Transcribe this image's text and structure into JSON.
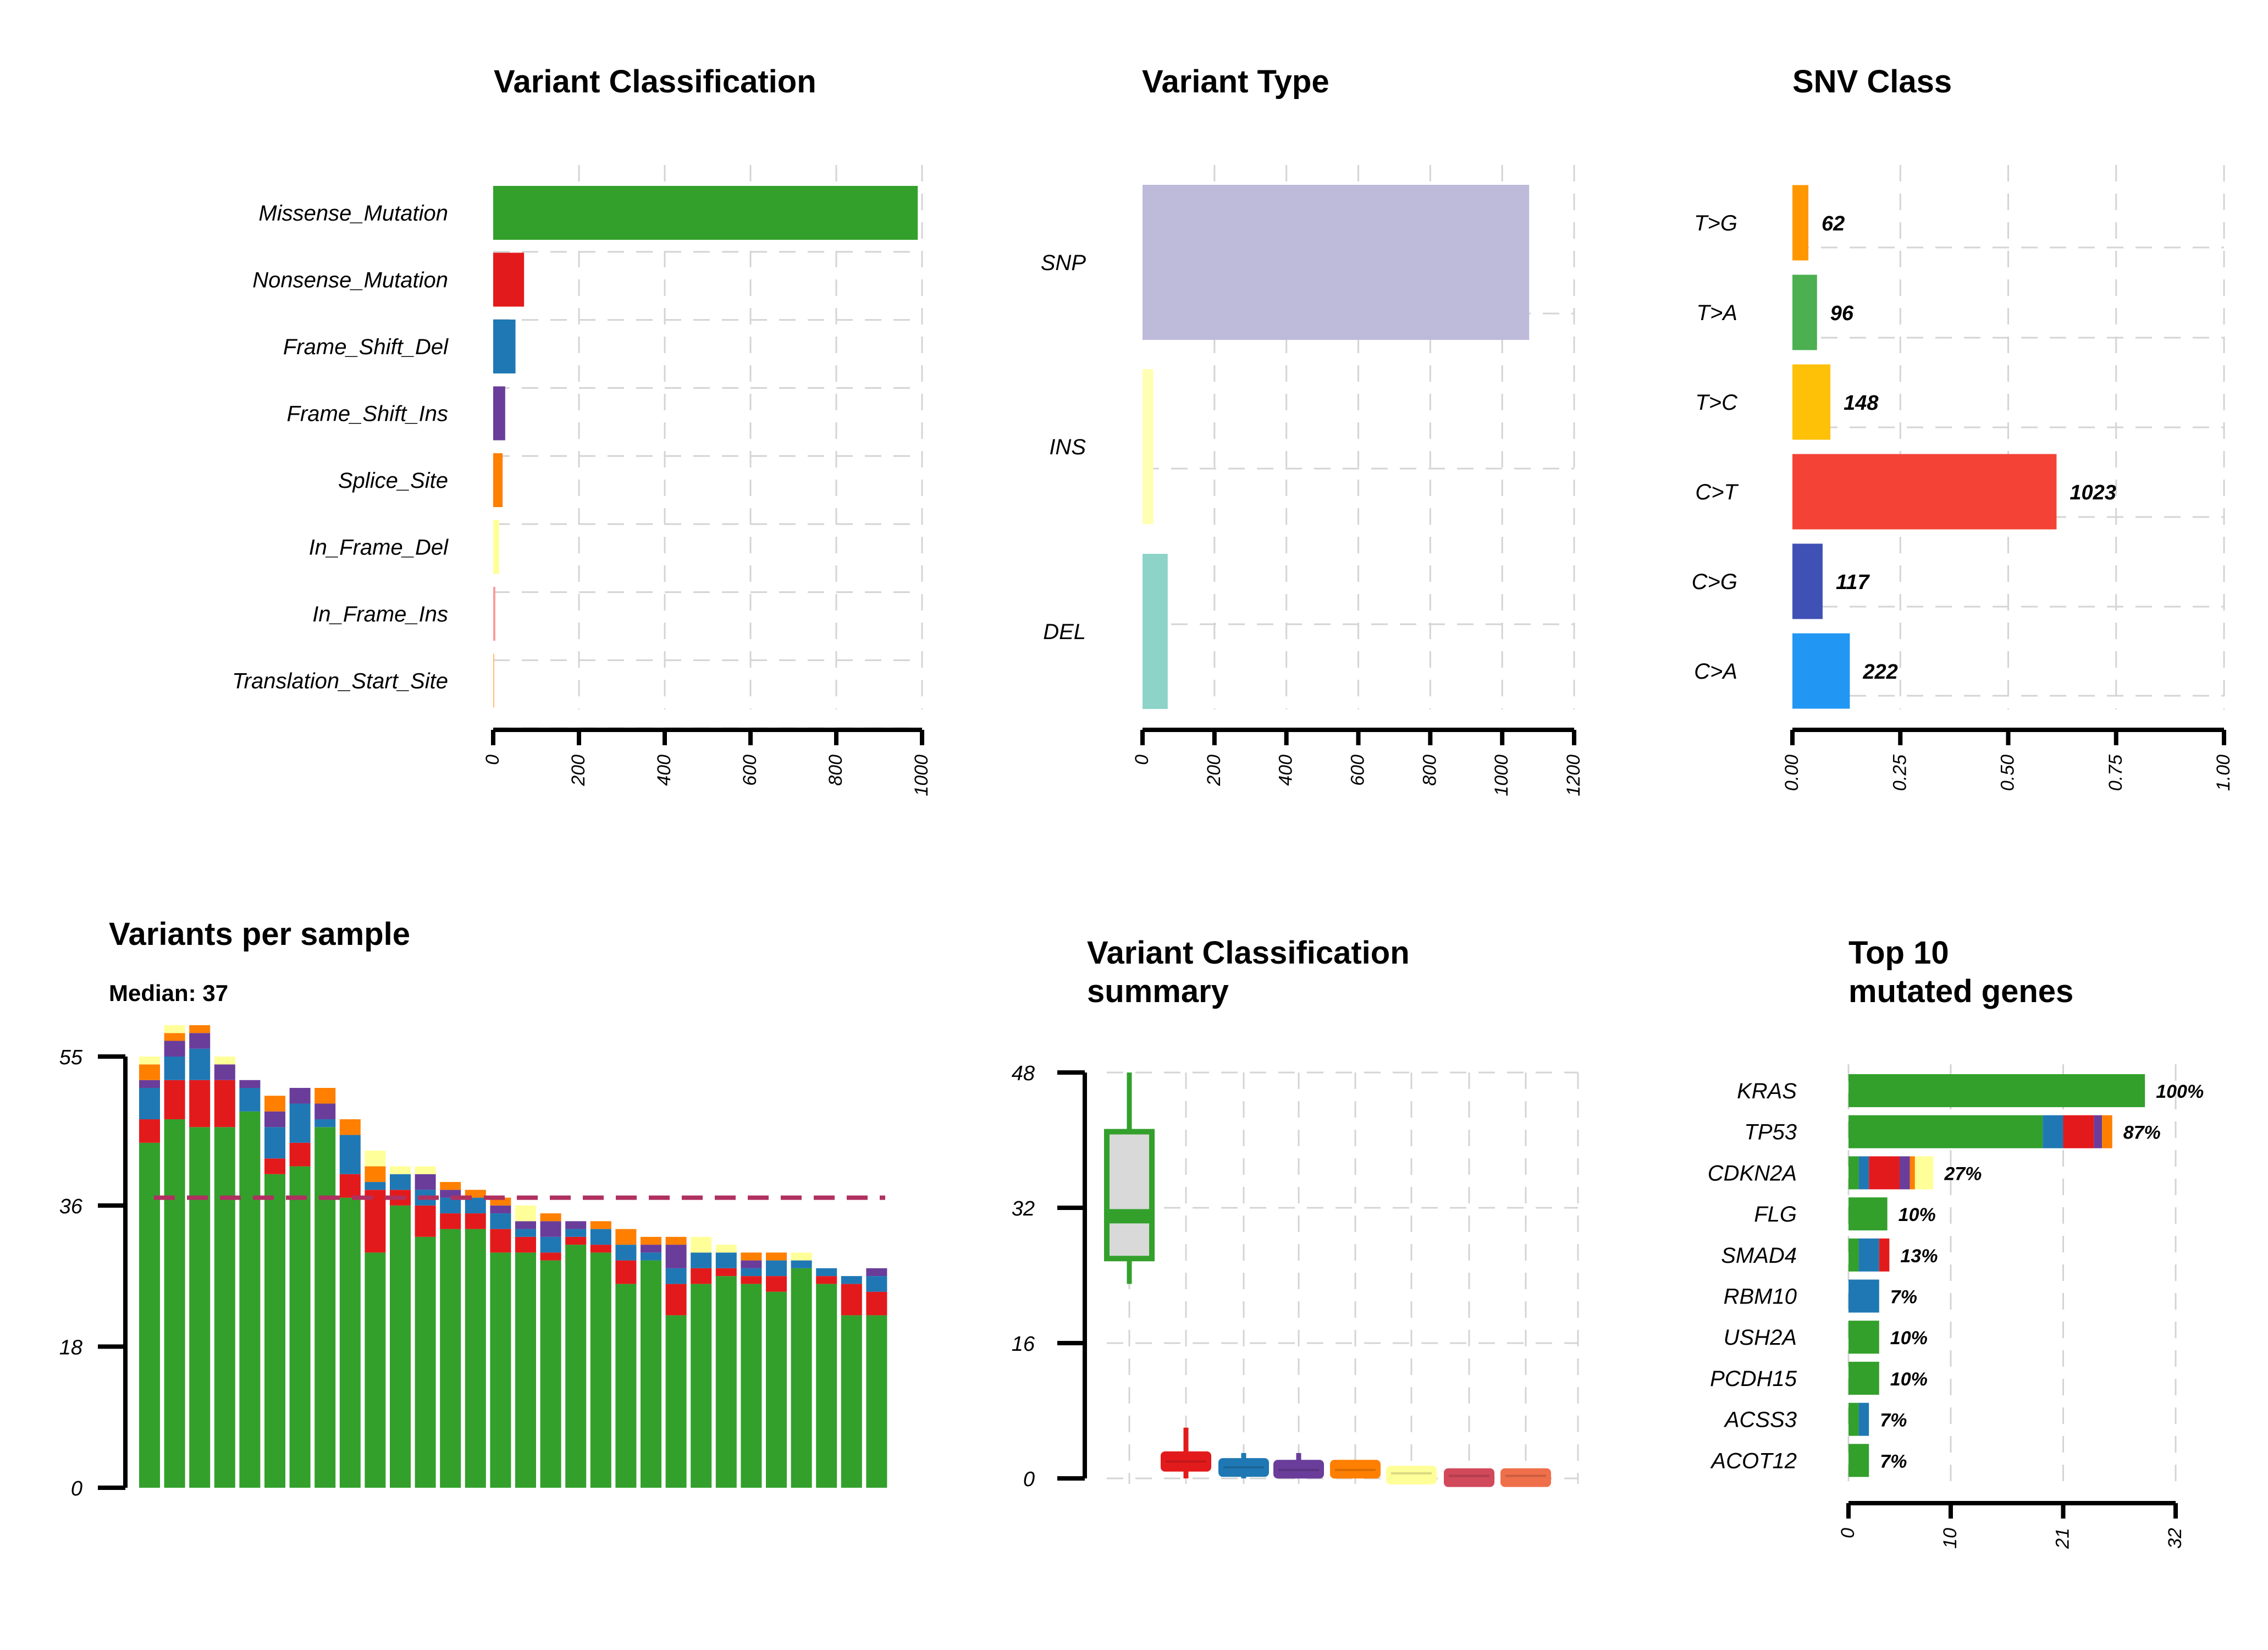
{
  "chart_data": [
    {
      "id": "vc",
      "type": "bar",
      "orientation": "horizontal",
      "title": "Variant Classification",
      "categories": [
        "Missense_Mutation",
        "Nonsense_Mutation",
        "Frame_Shift_Del",
        "Frame_Shift_Ins",
        "Splice_Site",
        "In_Frame_Del",
        "In_Frame_Ins",
        "Translation_Start_Site"
      ],
      "values": [
        990,
        72,
        52,
        28,
        22,
        14,
        5,
        2
      ],
      "colors": [
        "#33A02C",
        "#E31A1C",
        "#1F78B4",
        "#6A3D9A",
        "#FF7F00",
        "#FFFF99",
        "#FB9A99",
        "#FDBF6F"
      ],
      "xticks": [
        "0",
        "200",
        "400",
        "600",
        "800",
        "1000"
      ],
      "xlim": [
        0,
        1000
      ],
      "grid": true
    },
    {
      "id": "vt",
      "type": "bar",
      "orientation": "horizontal",
      "title": "Variant Type",
      "categories": [
        "SNP",
        "INS",
        "DEL"
      ],
      "values": [
        1075,
        30,
        70
      ],
      "colors": [
        "#BEBADA",
        "#FFFFB3",
        "#8DD3C7"
      ],
      "xticks": [
        "0",
        "200",
        "400",
        "600",
        "800",
        "1000",
        "1200"
      ],
      "xlim": [
        0,
        1200
      ],
      "grid": true
    },
    {
      "id": "snv",
      "type": "bar",
      "orientation": "horizontal",
      "title": "SNV Class",
      "categories": [
        "T>G",
        "T>A",
        "T>C",
        "C>T",
        "C>G",
        "C>A"
      ],
      "counts": [
        "62",
        "96",
        "148",
        "1023",
        "117",
        "222"
      ],
      "values": [
        0.037,
        0.057,
        0.088,
        0.612,
        0.07,
        0.133
      ],
      "colors": [
        "#FF9800",
        "#4CAF50",
        "#FFC107",
        "#F44336",
        "#3F51B5",
        "#2196F3"
      ],
      "xticks": [
        "0.00",
        "0.25",
        "0.50",
        "0.75",
        "1.00"
      ],
      "xlim": [
        0,
        1
      ],
      "grid": true
    },
    {
      "id": "vps",
      "type": "bar",
      "stacked": true,
      "title": "Variants per sample",
      "subtitle": "Median: 37",
      "median": 37,
      "yticks": [
        "0",
        "18",
        "36",
        "55"
      ],
      "ylim": [
        0,
        55
      ],
      "series_order": [
        "Missense_Mutation",
        "Nonsense_Mutation",
        "Frame_Shift_Del",
        "Frame_Shift_Ins",
        "Splice_Site",
        "In_Frame_Del"
      ],
      "colors": [
        "#33A02C",
        "#E31A1C",
        "#1F78B4",
        "#6A3D9A",
        "#FF7F00",
        "#FFFF99"
      ],
      "samples": [
        [
          44,
          3,
          4,
          1,
          2,
          1
        ],
        [
          47,
          5,
          3,
          2,
          1,
          1
        ],
        [
          46,
          6,
          4,
          2,
          1,
          0
        ],
        [
          46,
          6,
          0,
          2,
          0,
          1
        ],
        [
          48,
          0,
          3,
          1,
          0,
          0
        ],
        [
          40,
          2,
          4,
          2,
          2,
          0
        ],
        [
          41,
          3,
          5,
          2,
          0,
          0
        ],
        [
          46,
          0,
          1,
          2,
          2,
          0
        ],
        [
          37,
          3,
          5,
          0,
          2,
          0
        ],
        [
          30,
          8,
          1,
          0,
          2,
          2
        ],
        [
          36,
          2,
          2,
          0,
          0,
          1
        ],
        [
          32,
          4,
          2,
          2,
          0,
          1
        ],
        [
          33,
          2,
          2,
          1,
          1,
          0
        ],
        [
          33,
          2,
          2,
          0,
          1,
          0
        ],
        [
          30,
          3,
          2,
          1,
          1,
          0
        ],
        [
          30,
          2,
          1,
          1,
          0,
          2
        ],
        [
          29,
          1,
          2,
          2,
          1,
          0
        ],
        [
          31,
          1,
          1,
          1,
          0,
          0
        ],
        [
          30,
          1,
          2,
          0,
          1,
          0
        ],
        [
          26,
          3,
          2,
          0,
          2,
          0
        ],
        [
          29,
          0,
          1,
          1,
          1,
          0
        ],
        [
          22,
          4,
          2,
          3,
          1,
          0
        ],
        [
          26,
          2,
          2,
          0,
          0,
          2
        ],
        [
          27,
          1,
          2,
          0,
          0,
          1
        ],
        [
          26,
          1,
          1,
          1,
          1,
          0
        ],
        [
          25,
          2,
          2,
          0,
          1,
          0
        ],
        [
          28,
          0,
          1,
          0,
          0,
          1
        ],
        [
          26,
          1,
          1,
          0,
          0,
          0
        ],
        [
          22,
          4,
          1,
          0,
          0,
          0
        ],
        [
          22,
          3,
          2,
          1,
          0,
          0
        ]
      ]
    },
    {
      "id": "vcs",
      "type": "box",
      "title": "Variant Classification\nsummary",
      "yticks": [
        "0",
        "16",
        "32",
        "48"
      ],
      "ylim": [
        0,
        48
      ],
      "colors": [
        "#33A02C",
        "#E31A1C",
        "#1F78B4",
        "#6A3D9A",
        "#FF7F00",
        "#FFFF99",
        "#D1495B",
        "#EF6F4A"
      ],
      "boxes": [
        {
          "min": 23,
          "q1": 26,
          "median": 31,
          "q3": 41,
          "max": 48
        },
        {
          "min": 0,
          "q1": 1,
          "median": 2,
          "q3": 3,
          "max": 6
        },
        {
          "min": 0,
          "q1": 0.6,
          "median": 1.3,
          "q3": 2.2,
          "max": 3
        },
        {
          "min": 0,
          "q1": 0.5,
          "median": 1,
          "q3": 2,
          "max": 3
        },
        {
          "min": 0,
          "q1": 0.4,
          "median": 1,
          "q3": 2,
          "max": 2
        },
        {
          "min": 0,
          "q1": 0,
          "median": 0.6,
          "q3": 1.3,
          "max": 1.4
        },
        {
          "min": 0,
          "q1": 0,
          "median": 0.3,
          "q3": 1,
          "max": 1
        },
        {
          "min": 0,
          "q1": 0,
          "median": 0.3,
          "q3": 1,
          "max": 1
        }
      ]
    },
    {
      "id": "top10",
      "type": "bar",
      "orientation": "horizontal",
      "stacked": true,
      "title": "Top 10\nmutated genes",
      "xticks": [
        "0",
        "10",
        "21",
        "32"
      ],
      "xlim": [
        0,
        32
      ],
      "colors": [
        "#33A02C",
        "#1F78B4",
        "#E31A1C",
        "#6A3D9A",
        "#FF7F00",
        "#FFFF99"
      ],
      "genes": [
        {
          "name": "KRAS",
          "pct": "100%",
          "segments": [
            29,
            0,
            0,
            0,
            0,
            0
          ]
        },
        {
          "name": "TP53",
          "pct": "87%",
          "segments": [
            19,
            2,
            3,
            0.8,
            1,
            0
          ]
        },
        {
          "name": "CDKN2A",
          "pct": "27%",
          "segments": [
            1,
            1,
            3,
            1,
            0.5,
            1.8
          ]
        },
        {
          "name": "FLG",
          "pct": "10%",
          "segments": [
            3.8,
            0,
            0,
            0,
            0,
            0
          ]
        },
        {
          "name": "SMAD4",
          "pct": "13%",
          "segments": [
            1,
            2,
            1,
            0,
            0,
            0
          ]
        },
        {
          "name": "RBM10",
          "pct": "7%",
          "segments": [
            0,
            3,
            0,
            0,
            0,
            0
          ]
        },
        {
          "name": "USH2A",
          "pct": "10%",
          "segments": [
            3,
            0,
            0,
            0,
            0,
            0
          ]
        },
        {
          "name": "PCDH15",
          "pct": "10%",
          "segments": [
            3,
            0,
            0,
            0,
            0,
            0
          ]
        },
        {
          "name": "ACSS3",
          "pct": "7%",
          "segments": [
            1,
            1,
            0,
            0,
            0,
            0
          ]
        },
        {
          "name": "ACOT12",
          "pct": "7%",
          "segments": [
            2,
            0,
            0,
            0,
            0,
            0
          ]
        }
      ]
    }
  ]
}
